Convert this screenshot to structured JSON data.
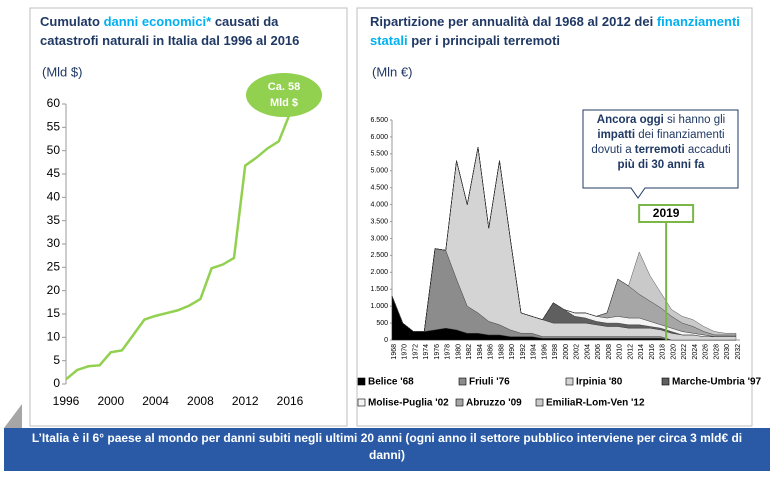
{
  "chart_data": [
    {
      "type": "line",
      "title": [
        {
          "text": "Cumulato "
        },
        {
          "text": "danni economici*",
          "highlight": true
        },
        {
          "text": " causati da catastrofi naturali in Italia dal 1996 al 2016"
        }
      ],
      "y_label": "(Mld $)",
      "x": [
        1996,
        1997,
        1998,
        1999,
        2000,
        2001,
        2002,
        2003,
        2004,
        2005,
        2006,
        2007,
        2008,
        2009,
        2010,
        2011,
        2012,
        2013,
        2014,
        2015,
        2016
      ],
      "series": [
        {
          "color": "#92d050",
          "values": [
            1,
            3,
            3.8,
            4,
            6.8,
            7.2,
            10.5,
            13.8,
            14.6,
            15.2,
            15.8,
            16.8,
            18.2,
            24.8,
            25.6,
            27,
            46.8,
            48.5,
            50.5,
            52,
            58
          ]
        }
      ],
      "xlim": [
        1996,
        2016
      ],
      "xticks": [
        1996,
        2000,
        2004,
        2008,
        2012,
        2016
      ],
      "ylim": [
        0,
        60
      ],
      "yticks": [
        0,
        5,
        10,
        15,
        20,
        25,
        30,
        35,
        40,
        45,
        50,
        55,
        60
      ],
      "annotation": [
        "Ca. 58",
        "Mld $"
      ],
      "annotation_color": "#92d050"
    },
    {
      "type": "stacked_area",
      "title": [
        {
          "text": "Ripartizione per annualità dal 1968 al 2012 dei "
        },
        {
          "text": "finanziamenti statali",
          "highlight": true
        },
        {
          "text": " per i principali terremoti"
        }
      ],
      "y_label": "(Mln €)",
      "x": [
        1968,
        1970,
        1972,
        1974,
        1976,
        1978,
        1980,
        1982,
        1984,
        1986,
        1988,
        1990,
        1992,
        1994,
        1996,
        1998,
        2000,
        2002,
        2004,
        2006,
        2008,
        2010,
        2012,
        2014,
        2016,
        2018,
        2020,
        2022,
        2024,
        2026,
        2028,
        2030,
        2032
      ],
      "series": [
        {
          "name": "Belice '68",
          "color": "#000000",
          "values": [
            1300,
            500,
            250,
            250,
            300,
            350,
            300,
            200,
            200,
            150,
            150,
            100,
            100,
            100,
            50,
            50,
            50,
            50,
            50,
            50,
            50,
            50,
            50,
            50,
            50,
            50,
            0,
            0,
            0,
            0,
            0,
            0,
            0
          ]
        },
        {
          "name": "Friuli '76",
          "color": "#8c8c8c",
          "values": [
            0,
            0,
            0,
            0,
            2400,
            2300,
            1500,
            800,
            600,
            400,
            300,
            200,
            100,
            100,
            50,
            50,
            50,
            50,
            50,
            50,
            50,
            50,
            50,
            50,
            50,
            50,
            0,
            0,
            0,
            0,
            0,
            0,
            0
          ]
        },
        {
          "name": "Irpinia '80",
          "color": "#d4d4d4",
          "values": [
            0,
            0,
            0,
            0,
            0,
            0,
            3500,
            3000,
            4900,
            2750,
            4850,
            2700,
            600,
            500,
            500,
            400,
            400,
            400,
            400,
            350,
            300,
            300,
            250,
            250,
            250,
            200,
            200,
            150,
            150,
            100,
            100,
            100,
            100
          ]
        },
        {
          "name": "Marche-Umbria '97",
          "color": "#5f5f5f",
          "values": [
            0,
            0,
            0,
            0,
            0,
            0,
            0,
            0,
            0,
            0,
            0,
            0,
            0,
            0,
            0,
            600,
            400,
            200,
            150,
            100,
            100,
            100,
            100,
            100,
            50,
            50,
            50,
            0,
            0,
            0,
            0,
            0,
            0
          ]
        },
        {
          "name": "Molise-Puglia '02",
          "color": "#f4f4f4",
          "values": [
            0,
            0,
            0,
            0,
            0,
            0,
            0,
            0,
            0,
            0,
            0,
            0,
            0,
            0,
            0,
            0,
            0,
            100,
            150,
            150,
            150,
            200,
            200,
            200,
            150,
            100,
            100,
            100,
            50,
            50,
            0,
            0,
            0
          ]
        },
        {
          "name": "Abruzzo '09",
          "color": "#a6a6a6",
          "values": [
            0,
            0,
            0,
            0,
            0,
            0,
            0,
            0,
            0,
            0,
            0,
            0,
            0,
            0,
            0,
            0,
            0,
            0,
            0,
            0,
            150,
            1100,
            950,
            700,
            600,
            500,
            350,
            250,
            200,
            100,
            50,
            50,
            50
          ]
        },
        {
          "name": "EmiliaR-Lom-Ven '12",
          "color": "#c9c9c9",
          "values": [
            0,
            0,
            0,
            0,
            0,
            0,
            0,
            0,
            0,
            0,
            0,
            0,
            0,
            0,
            0,
            0,
            0,
            0,
            0,
            0,
            0,
            0,
            0,
            1250,
            750,
            450,
            200,
            200,
            200,
            150,
            100,
            50,
            50
          ]
        }
      ],
      "xlim": [
        1968,
        2032
      ],
      "ylim": [
        0,
        6500
      ],
      "yticks": [
        0,
        {
          "value": 500,
          "label": "500"
        },
        {
          "value": 1000,
          "label": "1.000"
        },
        {
          "value": 1500,
          "label": "1.500"
        },
        {
          "value": 2000,
          "label": "2.000"
        },
        {
          "value": 2500,
          "label": "2.500"
        },
        {
          "value": 3000,
          "label": "3.000"
        },
        {
          "value": 3500,
          "label": "3.500"
        },
        {
          "value": 4000,
          "label": "4.000"
        },
        {
          "value": 4500,
          "label": "4.500"
        },
        {
          "value": 5000,
          "label": "5.000"
        },
        {
          "value": 5500,
          "label": "5.500"
        },
        {
          "value": 6000,
          "label": "6.000"
        },
        {
          "value": 6500,
          "label": "6.500"
        }
      ],
      "annotation": [
        {
          "text": "Ancora oggi",
          "bold": true
        },
        {
          "text": " si hanno gli "
        },
        {
          "text": "impatti",
          "bold": true
        },
        {
          "text": " dei finanziamenti dovuti a "
        },
        {
          "text": "terremoti",
          "bold": true
        },
        {
          "text": " accaduti "
        },
        {
          "text": "più di 30 anni fa",
          "bold": true
        }
      ],
      "marker_x": 2019,
      "marker_color": "#7ab648"
    }
  ],
  "banner": "L’Italia è il 6° paese al mondo per danni subiti negli ultimi 20 anni (ogni anno il settore pubblico interviene per circa 3 mld€ di danni)"
}
